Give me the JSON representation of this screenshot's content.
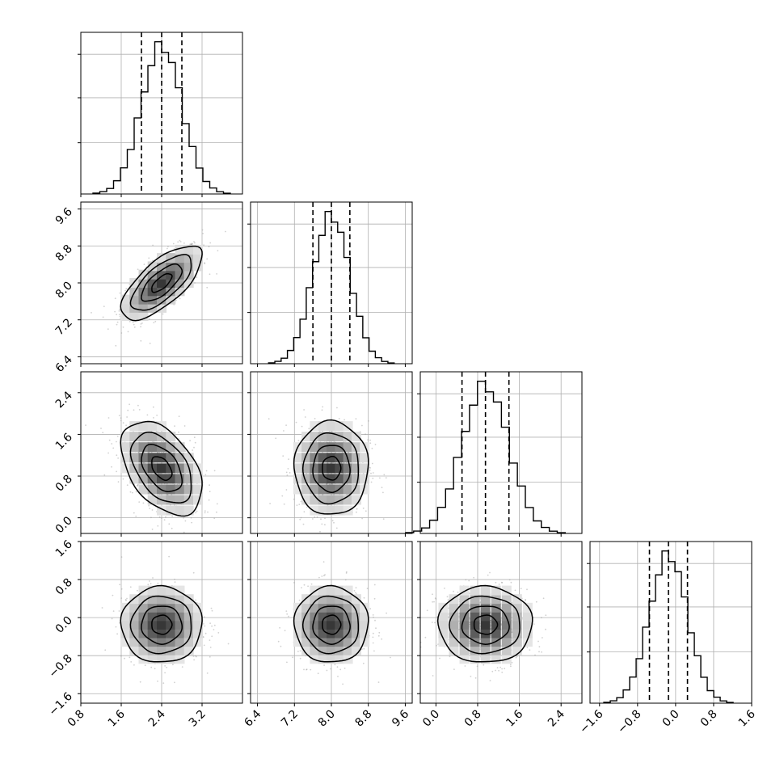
{
  "chart_data": {
    "type": "corner",
    "parameters": [
      {
        "mean": 2.4,
        "sd": 0.4,
        "range": [
          0.8,
          4.0
        ],
        "ticks": [
          "0.8",
          "1.6",
          "2.4",
          "3.2"
        ],
        "tick_values": [
          0.8,
          1.6,
          2.4,
          3.2
        ],
        "quantiles": [
          2.0,
          2.4,
          2.8
        ]
      },
      {
        "mean": 8.0,
        "sd": 0.4,
        "range": [
          6.25,
          9.75
        ],
        "ticks": [
          "6.4",
          "7.2",
          "8.0",
          "8.8",
          "9.6"
        ],
        "tick_values": [
          6.4,
          7.2,
          8.0,
          8.8,
          9.6
        ],
        "quantiles": [
          7.6,
          8.0,
          8.4
        ]
      },
      {
        "mean": 0.95,
        "sd": 0.45,
        "range": [
          -0.3,
          2.8
        ],
        "ticks": [
          "0.0",
          "0.8",
          "1.6",
          "2.4"
        ],
        "tick_values": [
          0.0,
          0.8,
          1.6,
          2.4
        ],
        "quantiles": [
          0.5,
          0.95,
          1.4
        ]
      },
      {
        "mean": -0.15,
        "sd": 0.4,
        "range": [
          -1.8,
          1.6
        ],
        "ticks": [
          "−1.6",
          "−0.8",
          "0.0",
          "0.8",
          "1.6"
        ],
        "tick_values": [
          -1.6,
          -0.8,
          0.0,
          0.8,
          1.6
        ],
        "quantiles": [
          -0.55,
          -0.15,
          0.25
        ]
      }
    ],
    "correlations": [
      [
        1.0,
        0.7,
        -0.45,
        0.0
      ],
      [
        0.7,
        1.0,
        0.0,
        0.0
      ],
      [
        -0.45,
        0.0,
        1.0,
        0.0
      ],
      [
        0.0,
        0.0,
        0.0,
        1.0
      ]
    ],
    "contour_levels_sigma": [
      0.5,
      1.0,
      1.5,
      2.0
    ],
    "histogram_bins": 20,
    "grid": true
  }
}
